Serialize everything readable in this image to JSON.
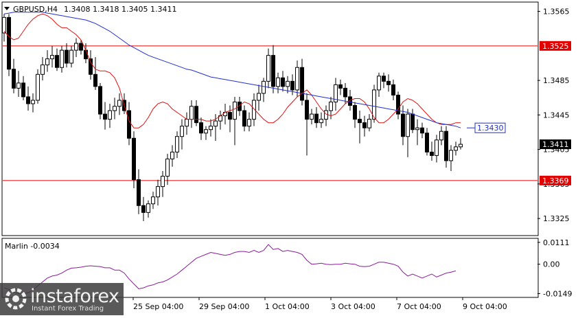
{
  "header": {
    "symbol_label": "GBPUSD,H4",
    "ohlc": "1.3408 1.3418 1.3405 1.3411"
  },
  "chart_data": [
    {
      "type": "candlestick",
      "title": "GBPUSD,H4 1.3408 1.3418 1.3405 1.3411",
      "y_ticks": [
        "1.3565",
        "1.3485",
        "1.3445",
        "1.3405",
        "1.3365",
        "1.3325"
      ],
      "ylim": [
        1.3306,
        1.3575
      ],
      "x_ticks": [
        "25 Sep 04:00",
        "29 Sep 04:00",
        "1 Oct 04:00",
        "3 Oct 04:00",
        "7 Oct 04:00",
        "9 Oct 04:00"
      ],
      "horizontal_lines": [
        {
          "value": 1.3525,
          "label": "1.3525",
          "color": "#e00000"
        },
        {
          "value": 1.3369,
          "label": "1.3369",
          "color": "#e00000"
        }
      ],
      "price_labels": [
        {
          "value": 1.343,
          "label": "1.3430",
          "color": "#1f2fd0"
        },
        {
          "value": 1.3411,
          "label": "1.3411",
          "color": "#000000"
        }
      ],
      "candles": [
        [
          1.354,
          1.3562,
          1.353,
          1.3558
        ],
        [
          1.3558,
          1.3562,
          1.349,
          1.3498
        ],
        [
          1.3498,
          1.351,
          1.347,
          1.3476
        ],
        [
          1.3476,
          1.3496,
          1.3466,
          1.3482
        ],
        [
          1.3482,
          1.349,
          1.3462,
          1.3466
        ],
        [
          1.3466,
          1.3478,
          1.345,
          1.3458
        ],
        [
          1.3458,
          1.347,
          1.3448,
          1.3462
        ],
        [
          1.3462,
          1.3498,
          1.3458,
          1.3492
        ],
        [
          1.3492,
          1.3512,
          1.3485,
          1.3503
        ],
        [
          1.3503,
          1.352,
          1.3495,
          1.351
        ],
        [
          1.351,
          1.3525,
          1.35,
          1.3514
        ],
        [
          1.3514,
          1.3522,
          1.3496,
          1.35
        ],
        [
          1.35,
          1.3525,
          1.3494,
          1.352
        ],
        [
          1.352,
          1.3528,
          1.35,
          1.3505
        ],
        [
          1.3505,
          1.3525,
          1.35,
          1.352
        ],
        [
          1.352,
          1.3534,
          1.3512,
          1.3528
        ],
        [
          1.3528,
          1.3532,
          1.3515,
          1.352
        ],
        [
          1.352,
          1.3528,
          1.3505,
          1.351
        ],
        [
          1.351,
          1.352,
          1.3486,
          1.3492
        ],
        [
          1.3492,
          1.3512,
          1.3474,
          1.3478
        ],
        [
          1.3478,
          1.3482,
          1.344,
          1.3446
        ],
        [
          1.3446,
          1.346,
          1.3428,
          1.344
        ],
        [
          1.344,
          1.3458,
          1.343,
          1.345
        ],
        [
          1.345,
          1.3465,
          1.344,
          1.3455
        ],
        [
          1.3455,
          1.347,
          1.3445,
          1.3462
        ],
        [
          1.3462,
          1.347,
          1.3446,
          1.345
        ],
        [
          1.345,
          1.346,
          1.341,
          1.3418
        ],
        [
          1.3418,
          1.3426,
          1.336,
          1.337
        ],
        [
          1.337,
          1.3382,
          1.333,
          1.334
        ],
        [
          1.334,
          1.335,
          1.3322,
          1.3332
        ],
        [
          1.3332,
          1.3346,
          1.3326,
          1.3342
        ],
        [
          1.3342,
          1.3356,
          1.3336,
          1.335
        ],
        [
          1.335,
          1.337,
          1.334,
          1.3362
        ],
        [
          1.3362,
          1.338,
          1.335,
          1.3374
        ],
        [
          1.3374,
          1.34,
          1.3364,
          1.3394
        ],
        [
          1.3394,
          1.341,
          1.3385,
          1.3402
        ],
        [
          1.3402,
          1.3426,
          1.3395,
          1.342
        ],
        [
          1.342,
          1.344,
          1.3405,
          1.3432
        ],
        [
          1.3432,
          1.3448,
          1.3422,
          1.344
        ],
        [
          1.344,
          1.3462,
          1.343,
          1.3455
        ],
        [
          1.3455,
          1.3462,
          1.3432,
          1.3436
        ],
        [
          1.3436,
          1.3442,
          1.3416,
          1.3424
        ],
        [
          1.3424,
          1.3432,
          1.3416,
          1.3428
        ],
        [
          1.3428,
          1.344,
          1.342,
          1.3432
        ],
        [
          1.3432,
          1.3446,
          1.3415,
          1.3438
        ],
        [
          1.3438,
          1.345,
          1.3428,
          1.3444
        ],
        [
          1.3444,
          1.3458,
          1.3434,
          1.3448
        ],
        [
          1.3448,
          1.3456,
          1.3425,
          1.344
        ],
        [
          1.344,
          1.3466,
          1.341,
          1.346
        ],
        [
          1.346,
          1.3466,
          1.3444,
          1.345
        ],
        [
          1.345,
          1.3456,
          1.3426,
          1.3432
        ],
        [
          1.3432,
          1.3448,
          1.3426,
          1.344
        ],
        [
          1.344,
          1.347,
          1.3432,
          1.3462
        ],
        [
          1.3462,
          1.348,
          1.345,
          1.347
        ],
        [
          1.347,
          1.3488,
          1.346,
          1.3484
        ],
        [
          1.3484,
          1.3522,
          1.3476,
          1.3514
        ],
        [
          1.3514,
          1.3526,
          1.347,
          1.3478
        ],
        [
          1.3478,
          1.3494,
          1.347,
          1.3488
        ],
        [
          1.3488,
          1.3496,
          1.3472,
          1.3478
        ],
        [
          1.3478,
          1.349,
          1.347,
          1.3484
        ],
        [
          1.3484,
          1.3492,
          1.3468,
          1.3474
        ],
        [
          1.3474,
          1.3508,
          1.3466,
          1.35
        ],
        [
          1.35,
          1.351,
          1.3456,
          1.3462
        ],
        [
          1.3462,
          1.347,
          1.3398,
          1.344
        ],
        [
          1.344,
          1.3452,
          1.3434,
          1.3446
        ],
        [
          1.3446,
          1.3454,
          1.343,
          1.3436
        ],
        [
          1.3436,
          1.3448,
          1.343,
          1.344
        ],
        [
          1.344,
          1.3456,
          1.3432,
          1.345
        ],
        [
          1.345,
          1.3466,
          1.344,
          1.346
        ],
        [
          1.346,
          1.3488,
          1.345,
          1.348
        ],
        [
          1.348,
          1.3486,
          1.3468,
          1.3476
        ],
        [
          1.3476,
          1.3482,
          1.3458,
          1.3466
        ],
        [
          1.3466,
          1.3474,
          1.345,
          1.3456
        ],
        [
          1.3456,
          1.346,
          1.343,
          1.344
        ],
        [
          1.344,
          1.345,
          1.3412,
          1.3436
        ],
        [
          1.3436,
          1.3444,
          1.342,
          1.343
        ],
        [
          1.343,
          1.3446,
          1.3426,
          1.344
        ],
        [
          1.344,
          1.348,
          1.3436,
          1.3474
        ],
        [
          1.3474,
          1.3494,
          1.3466,
          1.349
        ],
        [
          1.349,
          1.3494,
          1.3476,
          1.3484
        ],
        [
          1.3484,
          1.3492,
          1.3472,
          1.348
        ],
        [
          1.348,
          1.3486,
          1.3462,
          1.3468
        ],
        [
          1.3468,
          1.3472,
          1.344,
          1.3446
        ],
        [
          1.3446,
          1.3456,
          1.341,
          1.342
        ],
        [
          1.342,
          1.3452,
          1.3396,
          1.3446
        ],
        [
          1.3446,
          1.3452,
          1.3424,
          1.3428
        ],
        [
          1.3428,
          1.344,
          1.341,
          1.343
        ],
        [
          1.343,
          1.3436,
          1.3418,
          1.3424
        ],
        [
          1.3424,
          1.343,
          1.3398,
          1.3402
        ],
        [
          1.3402,
          1.3414,
          1.3392,
          1.3398
        ],
        [
          1.3398,
          1.3422,
          1.339,
          1.3416
        ],
        [
          1.3416,
          1.3432,
          1.341,
          1.3426
        ],
        [
          1.3426,
          1.3432,
          1.3384,
          1.3392
        ],
        [
          1.3392,
          1.341,
          1.338,
          1.3404
        ],
        [
          1.3404,
          1.3414,
          1.3398,
          1.3408
        ],
        [
          1.3408,
          1.3418,
          1.3405,
          1.3411
        ]
      ],
      "series": [
        {
          "type": "line",
          "color": "#e01010",
          "values": [
            1.3542,
            1.3536,
            1.3532,
            1.3534,
            1.3542,
            1.355,
            1.3556,
            1.356,
            1.3562,
            1.356,
            1.3556,
            1.355,
            1.3546,
            1.3546,
            1.3542,
            1.3538,
            1.3532,
            1.352,
            1.3506,
            1.3498,
            1.3496,
            1.3496,
            1.3494,
            1.3488,
            1.3476,
            1.3456,
            1.3438,
            1.343,
            1.343,
            1.3434,
            1.3442,
            1.3452,
            1.3458,
            1.346,
            1.3458,
            1.3452,
            1.3448,
            1.3444,
            1.344,
            1.344,
            1.344,
            1.344,
            1.3438,
            1.3438,
            1.344,
            1.3444,
            1.3448,
            1.345,
            1.3452,
            1.3456,
            1.346,
            1.3458,
            1.3452,
            1.3446,
            1.344,
            1.3436,
            1.3436,
            1.344,
            1.3446,
            1.3454,
            1.346,
            1.3466,
            1.347,
            1.3474,
            1.3468,
            1.346,
            1.3452,
            1.3446,
            1.3444,
            1.3446,
            1.3452,
            1.3458,
            1.3462,
            1.3464,
            1.3464,
            1.346,
            1.3452,
            1.3442,
            1.3436,
            1.3436,
            1.344,
            1.3446,
            1.3452,
            1.346,
            1.3464,
            1.3462,
            1.3458,
            1.3452,
            1.3446,
            1.344,
            1.3436,
            1.3434,
            1.3434,
            1.3434,
            1.3436,
            1.3436
          ]
        },
        {
          "type": "line",
          "color": "#2030d0",
          "values": [
            1.3562,
            1.3563,
            1.3564,
            1.3564,
            1.3564,
            1.3564,
            1.3564,
            1.3564,
            1.3564,
            1.3563,
            1.3562,
            1.3561,
            1.356,
            1.3559,
            1.3558,
            1.3557,
            1.3556,
            1.3555,
            1.3553,
            1.3551,
            1.3548,
            1.3545,
            1.3542,
            1.3538,
            1.3534,
            1.353,
            1.3526,
            1.3523,
            1.352,
            1.3517,
            1.3514,
            1.3512,
            1.351,
            1.3508,
            1.3506,
            1.3504,
            1.3502,
            1.35,
            1.3498,
            1.3497,
            1.3495,
            1.3493,
            1.3491,
            1.3489,
            1.3488,
            1.3487,
            1.3486,
            1.3485,
            1.3484,
            1.3483,
            1.3482,
            1.3481,
            1.348,
            1.3479,
            1.3478,
            1.3477,
            1.3476,
            1.3475,
            1.3474,
            1.3473,
            1.3472,
            1.3471,
            1.347,
            1.3469,
            1.3468,
            1.3467,
            1.3466,
            1.3465,
            1.3464,
            1.3463,
            1.3462,
            1.3461,
            1.346,
            1.3459,
            1.3458,
            1.3457,
            1.3456,
            1.3455,
            1.3454,
            1.3453,
            1.3452,
            1.3451,
            1.345,
            1.3449,
            1.3448,
            1.3446,
            1.3444,
            1.3442,
            1.344,
            1.3438,
            1.3436,
            1.3435,
            1.3434,
            1.3433,
            1.3432,
            1.343
          ]
        }
      ]
    },
    {
      "type": "line",
      "title": "Marlin -0.0034",
      "indicator_label": "Marlin",
      "indicator_value": "-0.0034",
      "y_ticks": [
        "0.0111",
        "0.00",
        "-0.0149"
      ],
      "ylim": [
        -0.0165,
        0.0128
      ],
      "series": [
        {
          "type": "line",
          "color": "#8b1a9a",
          "values": [
            -0.012,
            -0.0128,
            -0.014,
            -0.015,
            -0.015,
            -0.0145,
            -0.013,
            -0.011,
            -0.009,
            -0.007,
            -0.006,
            -0.0055,
            -0.0045,
            -0.003,
            -0.002,
            -0.0018,
            -0.0015,
            -0.001,
            -0.0008,
            -0.001,
            -0.0012,
            -0.0018,
            -0.0018,
            -0.003,
            -0.003,
            -0.0045,
            -0.0075,
            -0.01,
            -0.0125,
            -0.012,
            -0.011,
            -0.0105,
            -0.0095,
            -0.009,
            -0.008,
            -0.0065,
            -0.005,
            -0.003,
            -0.001,
            0.001,
            0.003,
            0.004,
            0.005,
            0.006,
            0.0055,
            0.005,
            0.0045,
            0.005,
            0.006,
            0.0065,
            0.0065,
            0.006,
            0.007,
            0.006,
            0.007,
            0.01,
            0.0075,
            0.008,
            0.0065,
            0.007,
            0.0065,
            0.006,
            0.005,
            0.002,
            0.0,
            0.0002,
            0.0005,
            0.0,
            -0.0002,
            0.0,
            0.0,
            0.0005,
            0.0002,
            0.0,
            -0.001,
            -0.0012,
            -0.001,
            0.0,
            0.001,
            0.001,
            0.0005,
            0.0,
            -0.001,
            -0.004,
            -0.006,
            -0.005,
            -0.006,
            -0.007,
            -0.006,
            -0.005,
            -0.0065,
            -0.0055,
            -0.0045,
            -0.004,
            -0.0034
          ]
        }
      ]
    }
  ],
  "pane_divider": {
    "color": "#888888"
  },
  "brand": {
    "logo_icon": "instaforex-ring-icon",
    "name": "instaforex",
    "tagline": "Instant Forex Trading"
  }
}
